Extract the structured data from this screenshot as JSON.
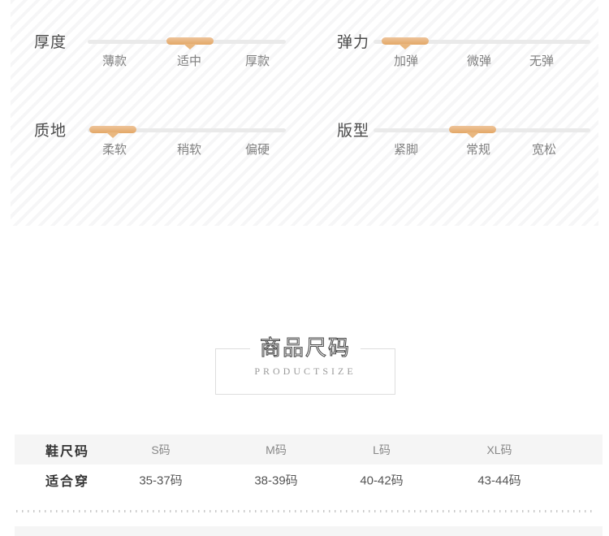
{
  "attribute_panel": {
    "groups": [
      {
        "label": "厚度",
        "options": [
          "薄款",
          "适中",
          "厚款"
        ],
        "selected": "适中",
        "selected_index": 1
      },
      {
        "label": "弹力",
        "options": [
          "加弹",
          "微弹",
          "无弹"
        ],
        "selected": "加弹",
        "selected_index": 0
      },
      {
        "label": "质地",
        "options": [
          "柔软",
          "稍软",
          "偏硬"
        ],
        "selected": "柔软",
        "selected_index": 0
      },
      {
        "label": "版型",
        "options": [
          "紧脚",
          "常规",
          "宽松"
        ],
        "selected": "常规",
        "selected_index": 1
      }
    ],
    "colors": {
      "accent": "#e8b177",
      "track": "#eaeaea",
      "label_text": "#4a4a4a",
      "option_text": "#808080"
    }
  },
  "size_section": {
    "title": "商品尺码",
    "subtitle": "PRODUCTSIZE"
  },
  "size_table": {
    "header_row": {
      "label": "鞋尺码",
      "cells": [
        "S码",
        "M码",
        "L码",
        "XL码"
      ]
    },
    "fit_row": {
      "label": "适合穿",
      "cells": [
        "35-37码",
        "38-39码",
        "40-42码",
        "43-44码"
      ]
    }
  }
}
